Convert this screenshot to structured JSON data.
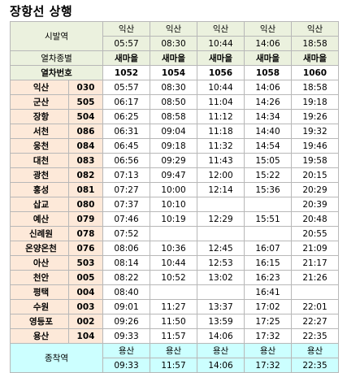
{
  "title": "장항선 상행",
  "header": {
    "departure_label": "시발역",
    "type_label": "열차종별",
    "number_label": "열차번호",
    "arrival_label": "종착역"
  },
  "trains": [
    {
      "origin": "익산",
      "origin_time": "05:57",
      "type": "새마을",
      "number": "1052",
      "dest": "용산",
      "dest_time": "09:33"
    },
    {
      "origin": "익산",
      "origin_time": "08:30",
      "type": "새마을",
      "number": "1054",
      "dest": "용산",
      "dest_time": "11:57"
    },
    {
      "origin": "익산",
      "origin_time": "10:44",
      "type": "새마을",
      "number": "1056",
      "dest": "용산",
      "dest_time": "14:06"
    },
    {
      "origin": "익산",
      "origin_time": "14:06",
      "type": "새마을",
      "number": "1058",
      "dest": "용산",
      "dest_time": "17:32"
    },
    {
      "origin": "익산",
      "origin_time": "18:58",
      "type": "새마을",
      "number": "1060",
      "dest": "용산",
      "dest_time": "22:35"
    }
  ],
  "stations": [
    {
      "name": "익산",
      "code": "030",
      "times": [
        "05:57",
        "08:30",
        "10:44",
        "14:06",
        "18:58"
      ]
    },
    {
      "name": "군산",
      "code": "505",
      "times": [
        "06:17",
        "08:50",
        "11:04",
        "14:26",
        "19:18"
      ]
    },
    {
      "name": "장항",
      "code": "504",
      "times": [
        "06:25",
        "08:58",
        "11:12",
        "14:34",
        "19:26"
      ]
    },
    {
      "name": "서천",
      "code": "086",
      "times": [
        "06:31",
        "09:04",
        "11:18",
        "14:40",
        "19:32"
      ]
    },
    {
      "name": "웅천",
      "code": "084",
      "times": [
        "06:45",
        "09:18",
        "11:32",
        "14:54",
        "19:46"
      ]
    },
    {
      "name": "대천",
      "code": "083",
      "times": [
        "06:56",
        "09:29",
        "11:43",
        "15:05",
        "19:58"
      ]
    },
    {
      "name": "광천",
      "code": "082",
      "times": [
        "07:13",
        "09:47",
        "12:00",
        "15:22",
        "20:15"
      ]
    },
    {
      "name": "홍성",
      "code": "081",
      "times": [
        "07:27",
        "10:00",
        "12:14",
        "15:36",
        "20:29"
      ]
    },
    {
      "name": "삽교",
      "code": "080",
      "times": [
        "07:37",
        "10:10",
        "",
        "",
        "20:39"
      ]
    },
    {
      "name": "예산",
      "code": "079",
      "times": [
        "07:46",
        "10:19",
        "12:29",
        "15:51",
        "20:48"
      ]
    },
    {
      "name": "신례원",
      "code": "078",
      "times": [
        "07:52",
        "",
        "",
        "",
        "20:55"
      ]
    },
    {
      "name": "온양온천",
      "code": "076",
      "times": [
        "08:06",
        "10:36",
        "12:45",
        "16:07",
        "21:09"
      ]
    },
    {
      "name": "아산",
      "code": "503",
      "times": [
        "08:14",
        "10:44",
        "12:53",
        "16:15",
        "21:17"
      ]
    },
    {
      "name": "천안",
      "code": "005",
      "times": [
        "08:22",
        "10:52",
        "13:02",
        "16:23",
        "21:26"
      ]
    },
    {
      "name": "평택",
      "code": "004",
      "times": [
        "08:40",
        "",
        "",
        "16:41",
        ""
      ]
    },
    {
      "name": "수원",
      "code": "003",
      "times": [
        "09:01",
        "11:27",
        "13:37",
        "17:02",
        "22:01"
      ]
    },
    {
      "name": "영등포",
      "code": "002",
      "times": [
        "09:26",
        "11:50",
        "13:59",
        "17:25",
        "22:27"
      ]
    },
    {
      "name": "용산",
      "code": "104",
      "times": [
        "09:33",
        "11:57",
        "14:06",
        "17:32",
        "22:35"
      ]
    }
  ]
}
